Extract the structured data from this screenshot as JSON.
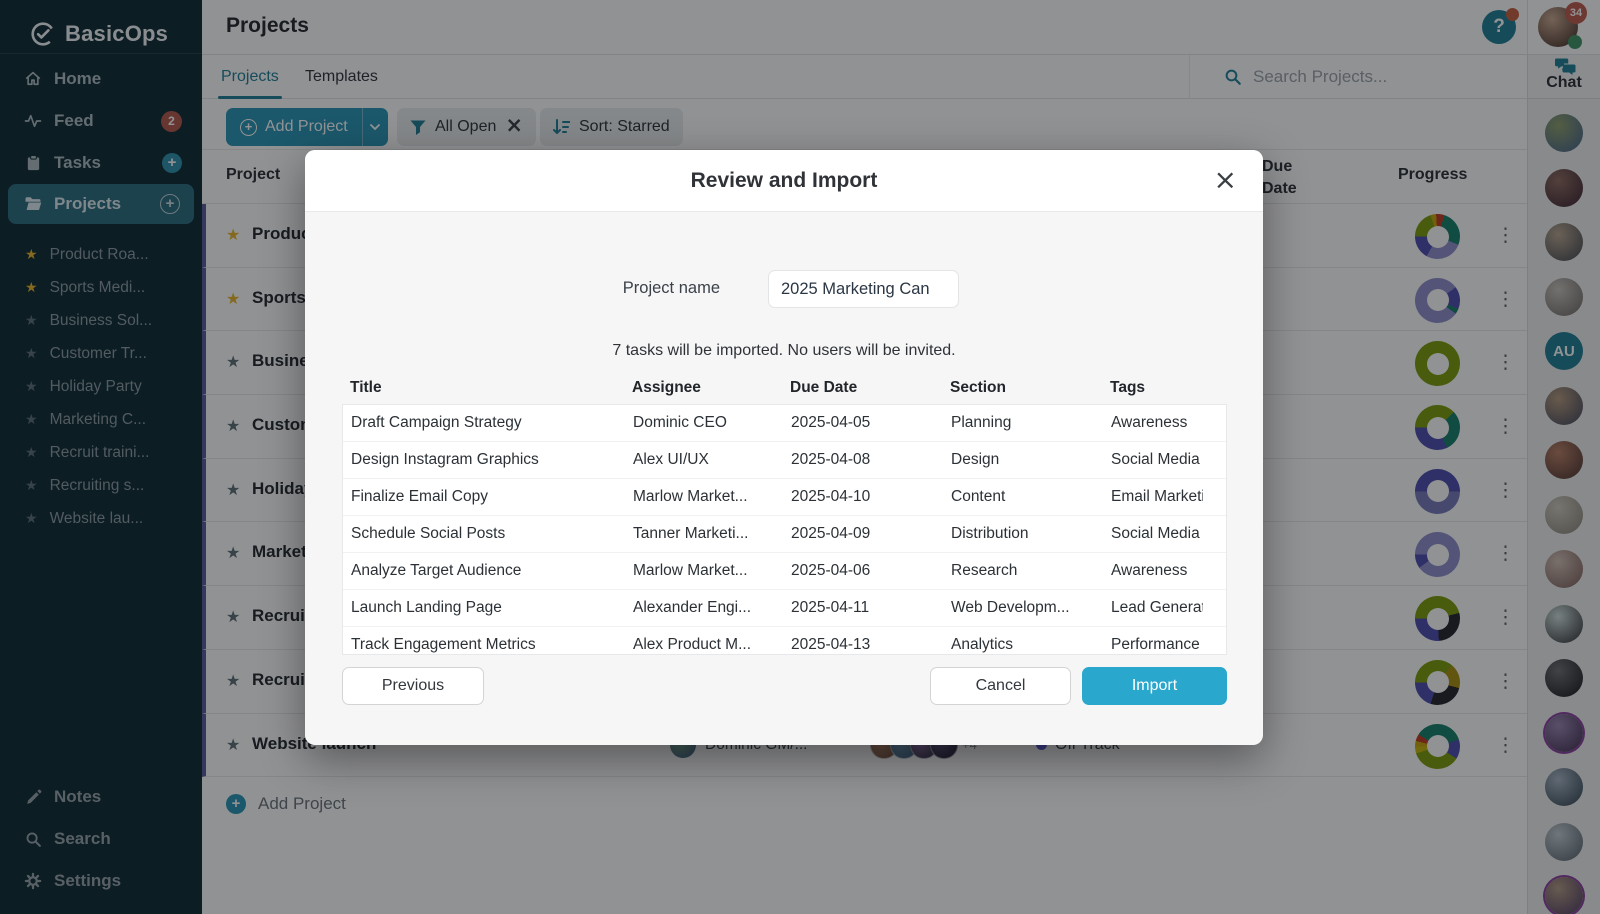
{
  "brand": {
    "name": "BasicOps"
  },
  "sidebar": {
    "nav": [
      {
        "label": "Home",
        "icon": "home-icon"
      },
      {
        "label": "Feed",
        "icon": "feed-icon",
        "badge": "2"
      },
      {
        "label": "Tasks",
        "icon": "tasks-icon",
        "plus": "filled"
      },
      {
        "label": "Projects",
        "icon": "folder-icon",
        "plus": "outline",
        "active": true
      }
    ],
    "projects": [
      {
        "label": "Product Roa...",
        "starred": true
      },
      {
        "label": "Sports Medi...",
        "starred": true
      },
      {
        "label": "Business Sol...",
        "starred": false
      },
      {
        "label": "Customer Tr...",
        "starred": false
      },
      {
        "label": "Holiday Party",
        "starred": false
      },
      {
        "label": "Marketing C...",
        "starred": false
      },
      {
        "label": "Recruit traini...",
        "starred": false
      },
      {
        "label": "Recruiting s...",
        "starred": false
      },
      {
        "label": "Website lau...",
        "starred": false
      }
    ],
    "footer": [
      {
        "label": "Notes",
        "icon": "pencil-icon"
      },
      {
        "label": "Search",
        "icon": "search-icon"
      },
      {
        "label": "Settings",
        "icon": "gear-icon"
      }
    ]
  },
  "topbar": {
    "title": "Projects",
    "user_badge": "34"
  },
  "tabs": [
    {
      "label": "Projects",
      "active": true
    },
    {
      "label": "Templates",
      "active": false
    }
  ],
  "search": {
    "placeholder": "Search Projects..."
  },
  "chat": {
    "label": "Chat",
    "avatars": [
      {
        "c1": "#8fa06b",
        "c2": "#44628c"
      },
      {
        "c1": "#8d6b5e",
        "c2": "#3a2230"
      },
      {
        "c1": "#b9a68f",
        "c2": "#41464f"
      },
      {
        "c1": "#c9c3bb",
        "c2": "#6d6a66"
      },
      {
        "initials": "AU",
        "bg": "#1F7F95"
      },
      {
        "c1": "#b59a7d",
        "c2": "#41465a"
      },
      {
        "c1": "#b97f63",
        "c2": "#4a3330"
      },
      {
        "c1": "#cfcabd",
        "c2": "#8b857a"
      },
      {
        "c1": "#d3c0b4",
        "c2": "#7c5f5a"
      },
      {
        "c1": "#cfe0da",
        "c2": "#2e2d33"
      },
      {
        "c1": "#6f6f73",
        "c2": "#17171a"
      },
      {
        "c1": "#9a86b3",
        "c2": "#3f2d4e",
        "ring": "#8a3f9e"
      },
      {
        "c1": "#a7b6c4",
        "c2": "#30414e"
      },
      {
        "c1": "#c2cdd3",
        "c2": "#55616a"
      },
      {
        "c1": "#b49a84",
        "c2": "#4b3a60",
        "ring": "#8a3f9e"
      }
    ]
  },
  "toolbar": {
    "add_project": "Add Project",
    "filter": "All Open",
    "sort": "Sort: Starred"
  },
  "main_table": {
    "headers": [
      "Project",
      "Due Date",
      "Progress"
    ],
    "rows": [
      {
        "name": "Product Roa...",
        "starred": true,
        "donut": [
          [
            "#7D9C09",
            20
          ],
          [
            "#C9A40A",
            4
          ],
          [
            "#C23B22",
            6
          ],
          [
            "#17806B",
            26
          ],
          [
            "#8F8FCC",
            27
          ],
          [
            "#4D4DAD",
            17
          ]
        ]
      },
      {
        "name": "Sports Medi...",
        "starred": true,
        "donut": [
          [
            "#8F8FCC",
            40
          ],
          [
            "#4D4DAD",
            16
          ],
          [
            "#17806B",
            4
          ],
          [
            "#8F8FCC",
            40
          ]
        ]
      },
      {
        "name": "Business Sol...",
        "starred": false,
        "donut": [
          [
            "#7D9C09",
            100
          ]
        ]
      },
      {
        "name": "Customer Tr...",
        "starred": false,
        "donut": [
          [
            "#7D9C09",
            38
          ],
          [
            "#17806B",
            30
          ],
          [
            "#4D4DAD",
            32
          ]
        ]
      },
      {
        "name": "Holiday Party",
        "starred": false,
        "donut": [
          [
            "#4D4DAD",
            50
          ],
          [
            "#7878B8",
            50
          ]
        ]
      },
      {
        "name": "Marketing C...",
        "starred": false,
        "donut": [
          [
            "#8F8FCC",
            90
          ],
          [
            "#4D4DAD",
            10
          ]
        ]
      },
      {
        "name": "Recruit traini...",
        "starred": false,
        "donut": [
          [
            "#7D9C09",
            46
          ],
          [
            "#26262B",
            28
          ],
          [
            "#4D4DAD",
            26
          ]
        ]
      },
      {
        "name": "Recruiting s...",
        "starred": false,
        "donut": [
          [
            "#7D9C09",
            36
          ],
          [
            "#A8900E",
            18
          ],
          [
            "#26262B",
            26
          ],
          [
            "#4D4DAD",
            20
          ]
        ]
      },
      {
        "name": "Website launch",
        "starred": false,
        "donut": [
          [
            "#C9A40A",
            4
          ],
          [
            "#C23B22",
            5
          ],
          [
            "#17806B",
            36
          ],
          [
            "#4D4DAD",
            14
          ],
          [
            "#7D9C09",
            36
          ],
          [
            "#C9B40A",
            5
          ]
        ],
        "owner": {
          "label": "Dominic GM/...",
          "c1": "#7fae8f",
          "c2": "#3c5a82"
        },
        "members": [
          [
            "#b98a6a",
            "#6a4a3a"
          ],
          [
            "#7aa0b8",
            "#3a5a7a"
          ],
          [
            "#9a7ab8",
            "#2a2a3a"
          ],
          [
            "#6a5a8a",
            "#1a1a2a"
          ]
        ],
        "members_more": "+4",
        "status": "Off Track"
      }
    ]
  },
  "add_row": {
    "label": "Add Project"
  },
  "modal": {
    "title": "Review and Import",
    "project_name_label": "Project name",
    "project_name_value": "2025 Marketing Can",
    "summary": "7 tasks will be imported. No users will be invited.",
    "table": {
      "headers": [
        "Title",
        "Assignee",
        "Due Date",
        "Section",
        "Tags"
      ],
      "rows": [
        [
          "Draft Campaign Strategy",
          "Dominic CEO",
          "2025-04-05",
          "Planning",
          "Awareness"
        ],
        [
          "Design Instagram Graphics",
          "Alex UI/UX",
          "2025-04-08",
          "Design",
          "Social Media"
        ],
        [
          "Finalize Email Copy",
          "Marlow Market...",
          "2025-04-10",
          "Content",
          "Email Marketing"
        ],
        [
          "Schedule Social Posts",
          "Tanner Marketi...",
          "2025-04-09",
          "Distribution",
          "Social Media"
        ],
        [
          "Analyze Target Audience",
          "Marlow Market...",
          "2025-04-06",
          "Research",
          "Awareness"
        ],
        [
          "Launch Landing Page",
          "Alexander Engi...",
          "2025-04-11",
          "Web Developm...",
          "Lead Generation"
        ],
        [
          "Track Engagement Metrics",
          "Alex Product M...",
          "2025-04-13",
          "Analytics",
          "Performance"
        ]
      ]
    },
    "buttons": {
      "previous": "Previous",
      "cancel": "Cancel",
      "import": "Import"
    }
  },
  "colors": {
    "sidebar_bg": "#0D2B34",
    "accent_teal": "#1F7F95",
    "button_teal": "#2896B4",
    "import_button": "#2AA7CC",
    "badge_red": "#B5584C",
    "star_gold": "#E8B429",
    "row_accent_indigo": "#5A5A9E",
    "status_indigo": "#5B5BD6"
  }
}
